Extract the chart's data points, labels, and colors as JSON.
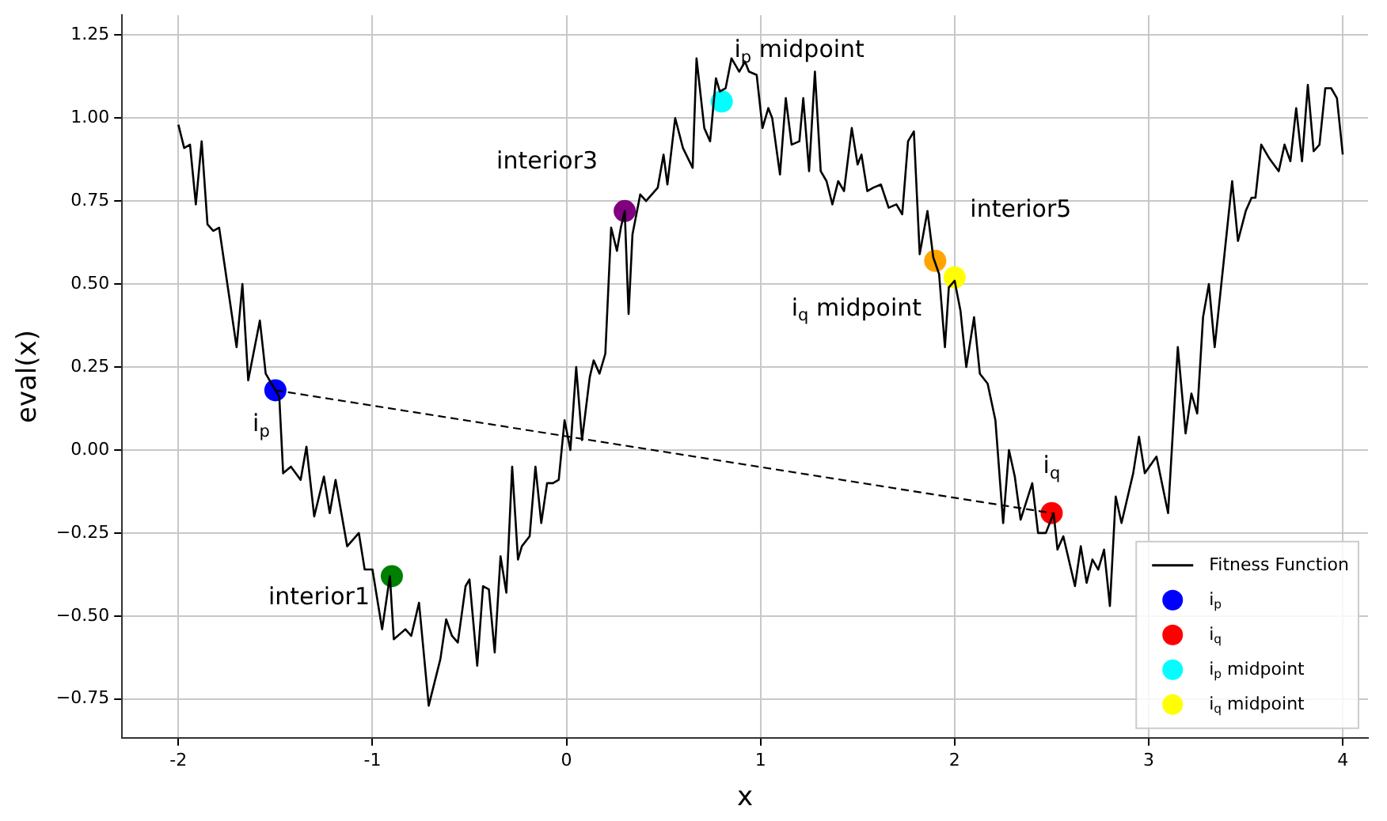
{
  "chart_data": {
    "type": "line",
    "xlabel": "x",
    "ylabel": "eval(x)",
    "xlim": [
      -2.29,
      4.13
    ],
    "ylim": [
      -0.867,
      1.31
    ],
    "xticks": [
      -2,
      -1,
      0,
      1,
      2,
      3,
      4
    ],
    "yticks": [
      {
        "value": -0.75,
        "label": "−0.75"
      },
      {
        "value": -0.5,
        "label": "−0.50"
      },
      {
        "value": -0.25,
        "label": "−0.25"
      },
      {
        "value": 0,
        "label": "0.00"
      },
      0.25,
      {
        "value": 0.5,
        "label": "0.50"
      },
      0.75,
      {
        "value": 1,
        "label": "1.00"
      },
      1.25
    ],
    "grid": true,
    "legend": "bottom right",
    "line_style": "solid",
    "series": [
      {
        "name": "Fitness Function",
        "color": "#000000",
        "x": [
          -2.0,
          -1.97,
          -1.94,
          -1.91,
          -1.88,
          -1.85,
          -1.82,
          -1.79,
          -1.74,
          -1.7,
          -1.67,
          -1.64,
          -1.58,
          -1.55,
          -1.5,
          -1.48,
          -1.46,
          -1.42,
          -1.37,
          -1.34,
          -1.3,
          -1.25,
          -1.22,
          -1.19,
          -1.13,
          -1.07,
          -1.04,
          -1.0,
          -0.95,
          -0.91,
          -0.89,
          -0.83,
          -0.8,
          -0.76,
          -0.71,
          -0.65,
          -0.62,
          -0.59,
          -0.56,
          -0.52,
          -0.5,
          -0.46,
          -0.43,
          -0.4,
          -0.37,
          -0.34,
          -0.31,
          -0.28,
          -0.25,
          -0.23,
          -0.19,
          -0.16,
          -0.13,
          -0.1,
          -0.07,
          -0.04,
          -0.01,
          0.02,
          0.05,
          0.08,
          0.12,
          0.14,
          0.17,
          0.2,
          0.23,
          0.26,
          0.28,
          0.3,
          0.32,
          0.34,
          0.38,
          0.41,
          0.47,
          0.5,
          0.52,
          0.56,
          0.6,
          0.65,
          0.67,
          0.71,
          0.74,
          0.77,
          0.79,
          0.82,
          0.85,
          0.87,
          0.89,
          0.92,
          0.94,
          0.98,
          1.01,
          1.04,
          1.06,
          1.1,
          1.13,
          1.16,
          1.2,
          1.22,
          1.25,
          1.28,
          1.31,
          1.34,
          1.37,
          1.4,
          1.43,
          1.47,
          1.5,
          1.52,
          1.55,
          1.58,
          1.62,
          1.66,
          1.7,
          1.73,
          1.76,
          1.79,
          1.82,
          1.86,
          1.89,
          1.92,
          1.95,
          1.97,
          2.0,
          2.03,
          2.06,
          2.1,
          2.13,
          2.17,
          2.21,
          2.25,
          2.28,
          2.31,
          2.34,
          2.4,
          2.43,
          2.47,
          2.51,
          2.53,
          2.56,
          2.62,
          2.65,
          2.68,
          2.71,
          2.74,
          2.77,
          2.8,
          2.83,
          2.86,
          2.92,
          2.95,
          2.98,
          3.04,
          3.1,
          3.15,
          3.19,
          3.22,
          3.25,
          3.28,
          3.31,
          3.34,
          3.43,
          3.46,
          3.5,
          3.53,
          3.55,
          3.58,
          3.62,
          3.67,
          3.7,
          3.73,
          3.76,
          3.79,
          3.82,
          3.85,
          3.88,
          3.91,
          3.94,
          3.97,
          4.0
        ],
        "values": [
          0.98,
          0.91,
          0.92,
          0.74,
          0.93,
          0.68,
          0.66,
          0.67,
          0.47,
          0.31,
          0.5,
          0.21,
          0.39,
          0.23,
          0.18,
          0.16,
          -0.07,
          -0.05,
          -0.09,
          0.01,
          -0.2,
          -0.08,
          -0.19,
          -0.09,
          -0.29,
          -0.25,
          -0.36,
          -0.36,
          -0.54,
          -0.38,
          -0.57,
          -0.54,
          -0.56,
          -0.46,
          -0.77,
          -0.63,
          -0.51,
          -0.56,
          -0.58,
          -0.41,
          -0.39,
          -0.65,
          -0.41,
          -0.42,
          -0.61,
          -0.32,
          -0.43,
          -0.05,
          -0.33,
          -0.29,
          -0.26,
          -0.05,
          -0.22,
          -0.1,
          -0.1,
          -0.09,
          0.09,
          0.0,
          0.25,
          0.03,
          0.22,
          0.27,
          0.23,
          0.29,
          0.67,
          0.6,
          0.67,
          0.72,
          0.41,
          0.65,
          0.77,
          0.75,
          0.79,
          0.89,
          0.8,
          1.0,
          0.91,
          0.85,
          1.18,
          0.97,
          0.93,
          1.12,
          1.08,
          1.09,
          1.18,
          1.16,
          1.14,
          1.17,
          1.14,
          1.13,
          0.97,
          1.03,
          1.0,
          0.83,
          1.06,
          0.92,
          0.93,
          1.06,
          0.84,
          1.14,
          0.84,
          0.81,
          0.74,
          0.81,
          0.78,
          0.97,
          0.86,
          0.89,
          0.78,
          0.79,
          0.8,
          0.73,
          0.74,
          0.71,
          0.93,
          0.96,
          0.59,
          0.72,
          0.58,
          0.53,
          0.31,
          0.49,
          0.51,
          0.42,
          0.25,
          0.4,
          0.23,
          0.2,
          0.09,
          -0.22,
          0.0,
          -0.08,
          -0.21,
          -0.1,
          -0.25,
          -0.25,
          -0.19,
          -0.3,
          -0.26,
          -0.41,
          -0.29,
          -0.4,
          -0.33,
          -0.36,
          -0.3,
          -0.47,
          -0.14,
          -0.22,
          -0.07,
          0.04,
          -0.07,
          -0.02,
          -0.19,
          0.31,
          0.05,
          0.17,
          0.11,
          0.4,
          0.5,
          0.31,
          0.81,
          0.63,
          0.72,
          0.76,
          0.76,
          0.92,
          0.88,
          0.84,
          0.92,
          0.87,
          1.03,
          0.87,
          1.1,
          0.9,
          0.92,
          1.09,
          1.09,
          1.06,
          0.89
        ]
      },
      {
        "color": "#000000",
        "line_style": "dashed",
        "x": [
          -1.5,
          2.5
        ],
        "values": [
          0.18,
          -0.19
        ]
      },
      {
        "type": "scatter",
        "marker": "circle",
        "color": "#008000",
        "x": [
          -0.9
        ],
        "values": [
          -0.38
        ]
      },
      {
        "type": "scatter",
        "marker": "circle",
        "color": "#800080",
        "x": [
          0.3
        ],
        "values": [
          0.72
        ]
      },
      {
        "type": "scatter",
        "marker": "circle",
        "color": "#ffa500",
        "x": [
          1.9
        ],
        "values": [
          0.57
        ]
      },
      {
        "name": "i$_{p}$",
        "type": "scatter",
        "marker": "circle",
        "color": "#0000ff",
        "x": [
          -1.5
        ],
        "values": [
          0.18
        ]
      },
      {
        "name": "i$_{q}$",
        "type": "scatter",
        "marker": "circle",
        "color": "#ff0000",
        "x": [
          2.5
        ],
        "values": [
          -0.19
        ]
      },
      {
        "name": "i$_{p}$ midpoint",
        "type": "scatter",
        "marker": "circle",
        "color": "#00ffff",
        "x": [
          0.8
        ],
        "values": [
          1.05
        ]
      },
      {
        "name": "i$_{q}$ midpoint",
        "type": "scatter",
        "marker": "circle",
        "color": "#ffff00",
        "x": [
          2.0
        ],
        "values": [
          0.52
        ]
      }
    ],
    "annotations": [
      {
        "text": "interior1",
        "x": -0.9,
        "y": -0.38
      },
      {
        "text": "interior3",
        "x": 0.3,
        "y": 0.72
      },
      {
        "text": "interior5",
        "x": 1.9,
        "y": 0.57
      },
      {
        "text": "i$_{p}$",
        "x": -1.5,
        "y": 0.18
      },
      {
        "text": "i$_{q}$",
        "x": 2.5,
        "y": -0.19
      },
      {
        "text": "i$_{p}$ midpoint",
        "x": 0.8,
        "y": 1.05
      },
      {
        "text": "i$_{q}$ midpoint",
        "x": 2.0,
        "y": 0.52
      }
    ]
  }
}
